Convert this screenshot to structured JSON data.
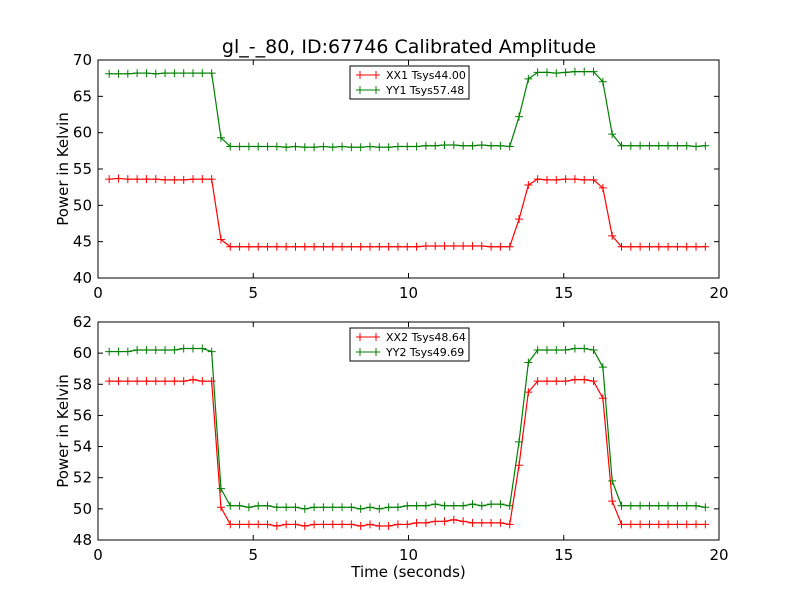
{
  "figure_title": "gl_-_80, ID:67746 Calibrated Amplitude",
  "colors": {
    "xx": "#ff0000",
    "yy": "#008000"
  },
  "chart_data": [
    {
      "type": "line",
      "title": "gl_-_80, ID:67746 Calibrated Amplitude",
      "xlabel": "",
      "ylabel": "Power in Kelvin",
      "xlim": [
        0,
        20
      ],
      "ylim": [
        40,
        70
      ],
      "xticks": [
        0,
        5,
        10,
        15,
        20
      ],
      "yticks": [
        40,
        45,
        50,
        55,
        60,
        65,
        70
      ],
      "legend_position": "top-center",
      "x": {
        "start": 0.36,
        "step": 0.3,
        "count": 65
      },
      "series": [
        {
          "name": "XX1 Tsys44.00",
          "color": "#ff0000",
          "values": [
            53.6,
            53.7,
            53.6,
            53.6,
            53.6,
            53.6,
            53.5,
            53.5,
            53.5,
            53.6,
            53.6,
            53.6,
            45.3,
            44.3,
            44.3,
            44.3,
            44.3,
            44.3,
            44.3,
            44.3,
            44.3,
            44.3,
            44.3,
            44.3,
            44.3,
            44.3,
            44.3,
            44.3,
            44.3,
            44.3,
            44.3,
            44.3,
            44.3,
            44.3,
            44.4,
            44.4,
            44.4,
            44.4,
            44.4,
            44.4,
            44.4,
            44.3,
            44.3,
            44.3,
            48.1,
            52.8,
            53.6,
            53.5,
            53.5,
            53.6,
            53.6,
            53.5,
            53.5,
            52.4,
            45.8,
            44.3,
            44.3,
            44.3,
            44.3,
            44.3,
            44.3,
            44.3,
            44.3,
            44.3,
            44.3
          ]
        },
        {
          "name": "YY1 Tsys57.48",
          "color": "#008000",
          "values": [
            68.1,
            68.1,
            68.1,
            68.2,
            68.2,
            68.1,
            68.2,
            68.2,
            68.2,
            68.2,
            68.2,
            68.2,
            59.3,
            58.1,
            58.1,
            58.1,
            58.1,
            58.1,
            58.1,
            58.0,
            58.1,
            58.0,
            58.0,
            58.1,
            58.0,
            58.1,
            58.0,
            58.0,
            58.1,
            58.0,
            58.0,
            58.1,
            58.1,
            58.1,
            58.2,
            58.2,
            58.3,
            58.3,
            58.2,
            58.2,
            58.3,
            58.2,
            58.2,
            58.1,
            62.2,
            67.4,
            68.3,
            68.3,
            68.2,
            68.3,
            68.4,
            68.4,
            68.4,
            67.0,
            59.8,
            58.2,
            58.2,
            58.2,
            58.2,
            58.2,
            58.2,
            58.2,
            58.2,
            58.1,
            58.2
          ]
        }
      ]
    },
    {
      "type": "line",
      "xlabel": "Time (seconds)",
      "ylabel": "Power in Kelvin",
      "xlim": [
        0,
        20
      ],
      "ylim": [
        48,
        62
      ],
      "xticks": [
        0,
        5,
        10,
        15,
        20
      ],
      "yticks": [
        48,
        50,
        52,
        54,
        56,
        58,
        60,
        62
      ],
      "legend_position": "top-center",
      "x": {
        "start": 0.36,
        "step": 0.3,
        "count": 65
      },
      "series": [
        {
          "name": "XX2 Tsys48.64",
          "color": "#ff0000",
          "values": [
            58.2,
            58.2,
            58.2,
            58.2,
            58.2,
            58.2,
            58.2,
            58.2,
            58.2,
            58.3,
            58.2,
            58.2,
            50.1,
            49.0,
            49.0,
            49.0,
            49.0,
            49.0,
            48.9,
            49.0,
            49.0,
            48.9,
            49.0,
            49.0,
            49.0,
            49.0,
            49.0,
            48.9,
            49.0,
            48.9,
            48.9,
            49.0,
            49.0,
            49.1,
            49.1,
            49.2,
            49.2,
            49.3,
            49.2,
            49.1,
            49.1,
            49.1,
            49.1,
            49.0,
            52.8,
            57.5,
            58.2,
            58.2,
            58.2,
            58.2,
            58.3,
            58.3,
            58.2,
            57.1,
            50.5,
            49.0,
            49.0,
            49.0,
            49.0,
            49.0,
            49.0,
            49.0,
            49.0,
            49.0,
            49.0
          ]
        },
        {
          "name": "YY2 Tsys49.69",
          "color": "#008000",
          "values": [
            60.1,
            60.1,
            60.1,
            60.2,
            60.2,
            60.2,
            60.2,
            60.2,
            60.3,
            60.3,
            60.3,
            60.1,
            51.3,
            50.2,
            50.2,
            50.1,
            50.2,
            50.2,
            50.1,
            50.1,
            50.1,
            50.0,
            50.1,
            50.1,
            50.1,
            50.1,
            50.1,
            50.0,
            50.1,
            50.0,
            50.1,
            50.1,
            50.2,
            50.2,
            50.2,
            50.3,
            50.2,
            50.2,
            50.2,
            50.3,
            50.2,
            50.3,
            50.3,
            50.2,
            54.3,
            59.4,
            60.2,
            60.2,
            60.2,
            60.2,
            60.3,
            60.3,
            60.2,
            59.1,
            51.8,
            50.2,
            50.2,
            50.2,
            50.2,
            50.2,
            50.2,
            50.2,
            50.2,
            50.2,
            50.1
          ]
        }
      ]
    }
  ]
}
